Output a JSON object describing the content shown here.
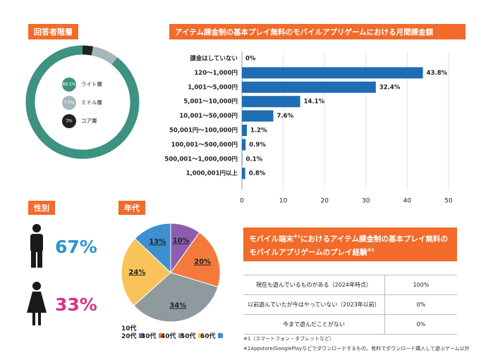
{
  "chart_data": [
    {
      "type": "donut",
      "title": "回答者階層",
      "categories": [
        "ライト層",
        "ミドル層",
        "コア層"
      ],
      "values": [
        89.5,
        7.5,
        3
      ],
      "value_labels": [
        "89.5%",
        "7.5%",
        "3%"
      ],
      "colors": [
        "#3d9281",
        "#a6b8bd",
        "#222222"
      ]
    },
    {
      "type": "bar",
      "orientation": "horizontal",
      "title": "アイテム課金制の基本プレイ無料のモバイルアプリゲームにおける月間課金額",
      "categories": [
        "課金はしていない",
        "120〜1,000円",
        "1,001〜5,000円",
        "5,001〜10,000円",
        "10,001〜50,000円",
        "50,001円〜100,000円",
        "100,001〜500,000円",
        "500,001〜1,000,000円",
        "1,000,001円以上"
      ],
      "values": [
        0,
        43.8,
        32.4,
        14.1,
        7.6,
        1.2,
        0.9,
        0.1,
        0.8
      ],
      "value_labels": [
        "0%",
        "43.8%",
        "32.4%",
        "14.1%",
        "7.6%",
        "1.2%",
        "0.9%",
        "0.1%",
        "0.8%"
      ],
      "color": "#1f6db3",
      "xlim": [
        0,
        50
      ],
      "xticks": [
        0,
        10,
        20,
        30,
        40,
        50
      ],
      "grid": true
    },
    {
      "type": "pictogram",
      "title": "性別",
      "values": [
        67,
        33
      ],
      "value_labels": [
        "67%",
        "33%"
      ],
      "colors": [
        "#2b93d1",
        "#d63384"
      ]
    },
    {
      "type": "pie",
      "title": "年代",
      "categories": [
        "10代\n20代",
        "30代",
        "40代",
        "50代",
        "60代"
      ],
      "values": [
        10,
        20,
        34,
        24,
        13
      ],
      "value_labels": [
        "10%",
        "20%",
        "34%",
        "24%",
        "13%"
      ],
      "colors": [
        "#8e5db0",
        "#f47a3c",
        "#8f9a9f",
        "#f8c45a",
        "#3d8fcf"
      ]
    }
  ],
  "table": {
    "title": [
      "モバイル端末",
      "※1",
      "におけるアイテム課金制の基本プレイ無料のモバイルアプリゲームのプレイ経験",
      "※2"
    ],
    "rows": [
      [
        "現在も遊んでいるものがある（2024年時点）",
        "100%"
      ],
      [
        "以前遊んでいたが今はやっていない（2023年以前）",
        "0%"
      ],
      [
        "今まで遊んだことがない",
        "0%"
      ]
    ]
  },
  "footnotes": [
    "※1（スマートフォン・タブレットなど）",
    "※2Appstore/GooglePlayなどでダウンロードするもの。有料でダウンロード購入して遊ぶゲーム以外"
  ]
}
